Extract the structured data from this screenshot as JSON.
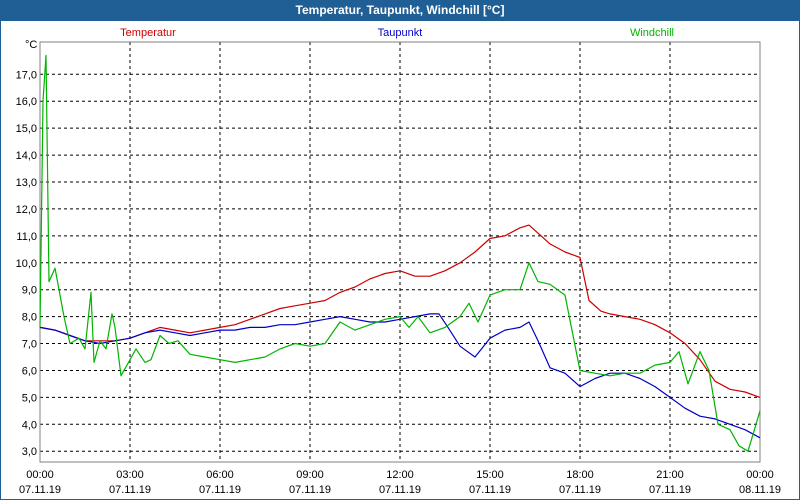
{
  "window": {
    "title": "Temperatur, Taupunkt, Windchill [°C]"
  },
  "colors": {
    "titlebar": "#1f5f96",
    "grid": "#000000",
    "axis": "#808080"
  },
  "chart_data": {
    "type": "line",
    "title": "Temperatur, Taupunkt, Windchill [°C]",
    "ylabel": "°C",
    "xlabel": "",
    "grid": true,
    "ylim": [
      2.6,
      18.2
    ],
    "xlim": [
      0,
      24
    ],
    "yticks": [
      3,
      4,
      5,
      6,
      7,
      8,
      9,
      10,
      11,
      12,
      13,
      14,
      15,
      16,
      17
    ],
    "ytick_labels": [
      "3,0",
      "4,0",
      "5,0",
      "6,0",
      "7,0",
      "8,0",
      "9,0",
      "10,0",
      "11,0",
      "12,0",
      "13,0",
      "14,0",
      "15,0",
      "16,0",
      "17,0"
    ],
    "xticks": [
      {
        "x": 0,
        "time": "00:00",
        "date": "07.11.19"
      },
      {
        "x": 3,
        "time": "03:00",
        "date": "07.11.19"
      },
      {
        "x": 6,
        "time": "06:00",
        "date": "07.11.19"
      },
      {
        "x": 9,
        "time": "09:00",
        "date": "07.11.19"
      },
      {
        "x": 12,
        "time": "12:00",
        "date": "07.11.19"
      },
      {
        "x": 15,
        "time": "15:00",
        "date": "07.11.19"
      },
      {
        "x": 18,
        "time": "18:00",
        "date": "07.11.19"
      },
      {
        "x": 21,
        "time": "21:00",
        "date": "07.11.19"
      },
      {
        "x": 24,
        "time": "00:00",
        "date": "08.11.19"
      }
    ],
    "series": [
      {
        "name": "Temperatur",
        "color": "#cc0000",
        "x": [
          0,
          0.5,
          1,
          1.5,
          2,
          2.5,
          3,
          3.5,
          4,
          4.5,
          5,
          5.5,
          6,
          6.5,
          7,
          7.5,
          8,
          8.5,
          9,
          9.5,
          10,
          10.5,
          11,
          11.5,
          12,
          12.5,
          13,
          13.5,
          14,
          14.5,
          15,
          15.5,
          16,
          16.3,
          16.7,
          17,
          17.5,
          18,
          18.3,
          18.7,
          19,
          19.5,
          20,
          20.5,
          21,
          21.5,
          22,
          22.5,
          23,
          23.5,
          24
        ],
        "y": [
          7.6,
          7.5,
          7.3,
          7.1,
          7.1,
          7.1,
          7.2,
          7.4,
          7.6,
          7.5,
          7.4,
          7.5,
          7.6,
          7.7,
          7.9,
          8.1,
          8.3,
          8.4,
          8.5,
          8.6,
          8.9,
          9.1,
          9.4,
          9.6,
          9.7,
          9.5,
          9.5,
          9.7,
          10.0,
          10.4,
          10.9,
          11.0,
          11.3,
          11.4,
          11.0,
          10.7,
          10.4,
          10.2,
          8.6,
          8.2,
          8.1,
          8.0,
          7.9,
          7.7,
          7.4,
          7.0,
          6.4,
          5.6,
          5.3,
          5.2,
          5.0
        ]
      },
      {
        "name": "Taupunkt",
        "color": "#0000c8",
        "x": [
          0,
          0.5,
          1,
          1.5,
          2,
          2.5,
          3,
          3.5,
          4,
          4.5,
          5,
          5.5,
          6,
          6.5,
          7,
          7.5,
          8,
          8.5,
          9,
          9.5,
          10,
          10.5,
          11,
          11.5,
          12,
          12.5,
          13,
          13.3,
          13.6,
          14,
          14.5,
          15,
          15.5,
          16,
          16.3,
          16.6,
          17,
          17.5,
          18,
          18.5,
          19,
          19.5,
          20,
          20.5,
          21,
          21.5,
          22,
          22.5,
          23,
          23.5,
          24
        ],
        "y": [
          7.6,
          7.5,
          7.3,
          7.1,
          7.0,
          7.1,
          7.2,
          7.4,
          7.5,
          7.4,
          7.3,
          7.4,
          7.5,
          7.5,
          7.6,
          7.6,
          7.7,
          7.7,
          7.8,
          7.9,
          8.0,
          7.9,
          7.8,
          7.8,
          7.9,
          8.0,
          8.1,
          8.1,
          7.6,
          6.9,
          6.5,
          7.2,
          7.5,
          7.6,
          7.8,
          7.1,
          6.1,
          5.9,
          5.4,
          5.7,
          5.9,
          5.9,
          5.7,
          5.4,
          5.0,
          4.6,
          4.3,
          4.2,
          4.0,
          3.8,
          3.5
        ]
      },
      {
        "name": "Windchill",
        "color": "#00b400",
        "x": [
          0,
          0.1,
          0.2,
          0.3,
          0.5,
          0.8,
          1,
          1.3,
          1.5,
          1.7,
          1.8,
          2,
          2.2,
          2.4,
          2.5,
          2.7,
          2.9,
          3.2,
          3.5,
          3.7,
          4,
          4.3,
          4.6,
          5,
          5.5,
          6,
          6.5,
          7,
          7.5,
          8,
          8.5,
          9,
          9.5,
          10,
          10.5,
          11,
          11.5,
          12,
          12.3,
          12.6,
          13,
          13.5,
          14,
          14.3,
          14.6,
          15,
          15.5,
          16,
          16.3,
          16.6,
          17,
          17.5,
          18,
          18.5,
          19,
          19.5,
          20,
          20.5,
          21,
          21.3,
          21.6,
          22,
          22.3,
          22.6,
          23,
          23.3,
          23.6,
          24
        ],
        "y": [
          7.6,
          16.0,
          17.7,
          9.3,
          9.8,
          8.0,
          7.0,
          7.2,
          6.8,
          8.9,
          6.3,
          7.1,
          6.8,
          8.1,
          7.6,
          5.8,
          6.2,
          6.8,
          6.3,
          6.4,
          7.3,
          7.0,
          7.1,
          6.6,
          6.5,
          6.4,
          6.3,
          6.4,
          6.5,
          6.8,
          7.0,
          6.9,
          7.0,
          7.8,
          7.5,
          7.7,
          7.9,
          8.0,
          7.6,
          8.0,
          7.4,
          7.6,
          8.0,
          8.5,
          7.8,
          8.8,
          9.0,
          9.0,
          10.0,
          9.3,
          9.2,
          8.8,
          6.0,
          5.9,
          5.8,
          5.9,
          5.9,
          6.2,
          6.3,
          6.7,
          5.5,
          6.7,
          6.0,
          4.0,
          3.8,
          3.2,
          3.0,
          4.5
        ]
      }
    ]
  }
}
